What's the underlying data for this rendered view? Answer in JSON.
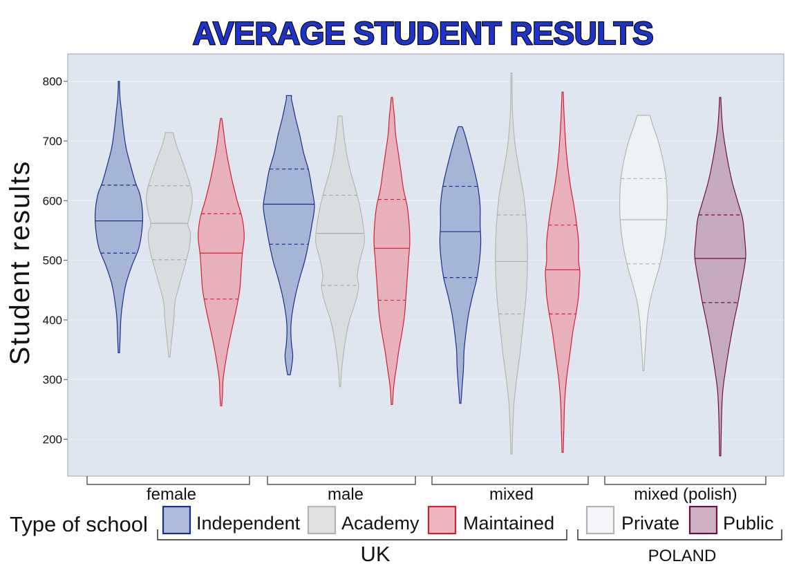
{
  "chart_data": {
    "type": "violin",
    "title": "AVERAGE STUDENT RESULTS",
    "ylabel": "Student results",
    "ylim": [
      138,
      846
    ],
    "yticks": [
      200,
      300,
      400,
      500,
      600,
      700,
      800
    ],
    "groups": [
      "female",
      "male",
      "mixed",
      "mixed (polish)"
    ],
    "legend": {
      "title": "Type of school",
      "country_groups": [
        {
          "label": "UK",
          "items": [
            "Independent",
            "Academy",
            "Maintained"
          ]
        },
        {
          "label": "POLAND",
          "items": [
            "Private",
            "Public"
          ]
        }
      ]
    },
    "styles": {
      "Independent": {
        "stroke": "#1a2e8a",
        "fill": "#9aaad0",
        "median_line": "#1a2e8a"
      },
      "Academy": {
        "stroke": "#b4b4b4",
        "fill": "#d9dadc",
        "median_line": "#a8a8a8"
      },
      "Maintained": {
        "stroke": "#d01f34",
        "fill": "#eaa4b0",
        "median_line": "#d01f34"
      },
      "Private": {
        "stroke": "#b4b4b4",
        "fill": "#f2f4f7",
        "median_line": "#b4b4b4"
      },
      "Public": {
        "stroke": "#6e0f40",
        "fill": "#c09cb4",
        "median_line": "#6e0f40"
      }
    },
    "series": [
      {
        "group": "female",
        "type": "Independent",
        "min": 345,
        "max": 800,
        "q1": 512,
        "median": 566,
        "q3": 626,
        "profile": [
          [
            345,
            1
          ],
          [
            370,
            2
          ],
          [
            400,
            3
          ],
          [
            430,
            6
          ],
          [
            460,
            11
          ],
          [
            490,
            20
          ],
          [
            520,
            31
          ],
          [
            550,
            36
          ],
          [
            580,
            37
          ],
          [
            610,
            33
          ],
          [
            630,
            26
          ],
          [
            660,
            18
          ],
          [
            690,
            11
          ],
          [
            720,
            7
          ],
          [
            750,
            4
          ],
          [
            770,
            2
          ],
          [
            790,
            1
          ],
          [
            800,
            1
          ]
        ]
      },
      {
        "group": "female",
        "type": "Academy",
        "min": 338,
        "max": 714,
        "q1": 501,
        "median": 562,
        "q3": 625,
        "profile": [
          [
            338,
            1
          ],
          [
            360,
            3
          ],
          [
            380,
            5
          ],
          [
            400,
            7
          ],
          [
            430,
            9
          ],
          [
            460,
            16
          ],
          [
            490,
            24
          ],
          [
            520,
            31
          ],
          [
            545,
            33
          ],
          [
            560,
            29
          ],
          [
            580,
            33
          ],
          [
            600,
            36
          ],
          [
            620,
            34
          ],
          [
            645,
            27
          ],
          [
            670,
            19
          ],
          [
            690,
            12
          ],
          [
            705,
            8
          ],
          [
            714,
            6
          ]
        ]
      },
      {
        "group": "female",
        "type": "Maintained",
        "min": 256,
        "max": 738,
        "q1": 435,
        "median": 512,
        "q3": 578,
        "profile": [
          [
            256,
            1
          ],
          [
            275,
            2
          ],
          [
            300,
            3
          ],
          [
            330,
            7
          ],
          [
            360,
            12
          ],
          [
            390,
            18
          ],
          [
            420,
            24
          ],
          [
            450,
            29
          ],
          [
            480,
            31
          ],
          [
            510,
            33
          ],
          [
            540,
            36
          ],
          [
            570,
            33
          ],
          [
            600,
            25
          ],
          [
            630,
            18
          ],
          [
            660,
            12
          ],
          [
            690,
            7
          ],
          [
            715,
            4
          ],
          [
            738,
            1
          ]
        ]
      },
      {
        "group": "male",
        "type": "Independent",
        "min": 308,
        "max": 776,
        "q1": 527,
        "median": 594,
        "q3": 653,
        "profile": [
          [
            308,
            2
          ],
          [
            320,
            4
          ],
          [
            340,
            6
          ],
          [
            360,
            4
          ],
          [
            385,
            3
          ],
          [
            410,
            5
          ],
          [
            440,
            10
          ],
          [
            470,
            17
          ],
          [
            500,
            25
          ],
          [
            530,
            31
          ],
          [
            560,
            36
          ],
          [
            590,
            40
          ],
          [
            620,
            36
          ],
          [
            650,
            31
          ],
          [
            680,
            23
          ],
          [
            710,
            17
          ],
          [
            740,
            10
          ],
          [
            760,
            6
          ],
          [
            770,
            4
          ],
          [
            776,
            4
          ]
        ]
      },
      {
        "group": "male",
        "type": "Academy",
        "min": 288,
        "max": 742,
        "q1": 458,
        "median": 545,
        "q3": 609,
        "profile": [
          [
            288,
            1
          ],
          [
            310,
            2
          ],
          [
            340,
            5
          ],
          [
            370,
            9
          ],
          [
            400,
            15
          ],
          [
            430,
            24
          ],
          [
            455,
            29
          ],
          [
            475,
            27
          ],
          [
            500,
            31
          ],
          [
            530,
            38
          ],
          [
            560,
            36
          ],
          [
            590,
            31
          ],
          [
            620,
            24
          ],
          [
            650,
            16
          ],
          [
            680,
            10
          ],
          [
            710,
            6
          ],
          [
            730,
            4
          ],
          [
            742,
            3
          ]
        ]
      },
      {
        "group": "male",
        "type": "Maintained",
        "min": 258,
        "max": 773,
        "q1": 433,
        "median": 520,
        "q3": 602,
        "profile": [
          [
            258,
            1
          ],
          [
            290,
            3
          ],
          [
            320,
            7
          ],
          [
            350,
            11
          ],
          [
            380,
            16
          ],
          [
            410,
            20
          ],
          [
            440,
            22
          ],
          [
            470,
            24
          ],
          [
            500,
            26
          ],
          [
            530,
            28
          ],
          [
            560,
            27
          ],
          [
            590,
            24
          ],
          [
            620,
            18
          ],
          [
            650,
            14
          ],
          [
            680,
            10
          ],
          [
            710,
            6
          ],
          [
            740,
            4
          ],
          [
            760,
            2
          ],
          [
            773,
            1
          ]
        ]
      },
      {
        "group": "mixed",
        "type": "Independent",
        "min": 260,
        "max": 724,
        "q1": 471,
        "median": 548,
        "q3": 624,
        "profile": [
          [
            260,
            1
          ],
          [
            290,
            3
          ],
          [
            320,
            5
          ],
          [
            350,
            6
          ],
          [
            380,
            9
          ],
          [
            410,
            13
          ],
          [
            440,
            19
          ],
          [
            470,
            26
          ],
          [
            500,
            30
          ],
          [
            530,
            32
          ],
          [
            560,
            31
          ],
          [
            590,
            31
          ],
          [
            620,
            28
          ],
          [
            650,
            22
          ],
          [
            680,
            15
          ],
          [
            700,
            10
          ],
          [
            715,
            6
          ],
          [
            724,
            3
          ]
        ]
      },
      {
        "group": "mixed",
        "type": "Academy",
        "min": 175,
        "max": 814,
        "q1": 410,
        "median": 498,
        "q3": 576,
        "profile": [
          [
            175,
            1
          ],
          [
            220,
            2
          ],
          [
            260,
            4
          ],
          [
            300,
            8
          ],
          [
            340,
            13
          ],
          [
            370,
            16
          ],
          [
            400,
            19
          ],
          [
            430,
            22
          ],
          [
            460,
            24
          ],
          [
            490,
            25
          ],
          [
            520,
            25
          ],
          [
            550,
            24
          ],
          [
            580,
            22
          ],
          [
            610,
            19
          ],
          [
            640,
            14
          ],
          [
            670,
            9
          ],
          [
            700,
            5
          ],
          [
            740,
            2
          ],
          [
            780,
            1
          ],
          [
            814,
            1
          ]
        ]
      },
      {
        "group": "mixed",
        "type": "Maintained",
        "min": 178,
        "max": 782,
        "q1": 410,
        "median": 484,
        "q3": 559,
        "profile": [
          [
            178,
            1
          ],
          [
            220,
            2
          ],
          [
            260,
            3
          ],
          [
            300,
            6
          ],
          [
            340,
            11
          ],
          [
            380,
            16
          ],
          [
            410,
            21
          ],
          [
            440,
            25
          ],
          [
            460,
            26
          ],
          [
            480,
            27
          ],
          [
            500,
            25
          ],
          [
            530,
            25
          ],
          [
            560,
            22
          ],
          [
            590,
            18
          ],
          [
            620,
            13
          ],
          [
            650,
            9
          ],
          [
            680,
            6
          ],
          [
            710,
            4
          ],
          [
            750,
            2
          ],
          [
            782,
            1
          ]
        ]
      },
      {
        "group": "mixed (polish)",
        "type": "Private",
        "min": 315,
        "max": 743,
        "q1": 494,
        "median": 568,
        "q3": 637,
        "profile": [
          [
            315,
            1
          ],
          [
            340,
            2
          ],
          [
            370,
            4
          ],
          [
            400,
            6
          ],
          [
            430,
            10
          ],
          [
            460,
            17
          ],
          [
            490,
            25
          ],
          [
            520,
            31
          ],
          [
            550,
            35
          ],
          [
            580,
            37
          ],
          [
            610,
            37
          ],
          [
            640,
            35
          ],
          [
            670,
            30
          ],
          [
            700,
            23
          ],
          [
            725,
            15
          ],
          [
            743,
            10
          ]
        ]
      },
      {
        "group": "mixed (polish)",
        "type": "Public",
        "min": 172,
        "max": 773,
        "q1": 429,
        "median": 503,
        "q3": 576,
        "profile": [
          [
            172,
            1
          ],
          [
            230,
            2
          ],
          [
            280,
            4
          ],
          [
            320,
            9
          ],
          [
            360,
            15
          ],
          [
            400,
            22
          ],
          [
            430,
            28
          ],
          [
            460,
            33
          ],
          [
            490,
            38
          ],
          [
            510,
            40
          ],
          [
            540,
            38
          ],
          [
            570,
            35
          ],
          [
            600,
            27
          ],
          [
            630,
            19
          ],
          [
            660,
            13
          ],
          [
            690,
            8
          ],
          [
            720,
            4
          ],
          [
            750,
            2
          ],
          [
            773,
            1
          ]
        ]
      }
    ]
  }
}
